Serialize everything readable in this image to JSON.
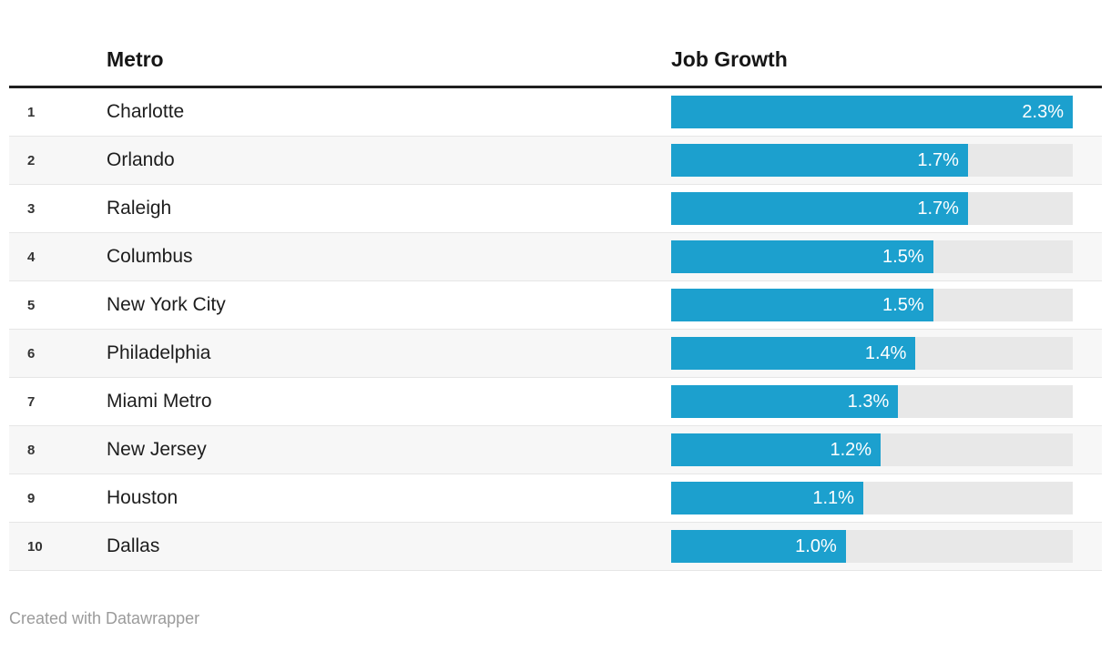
{
  "chart_data": {
    "type": "bar",
    "orientation": "horizontal",
    "column_headers": {
      "metro": "Metro",
      "value": "Job Growth"
    },
    "categories": [
      "Charlotte",
      "Orlando",
      "Raleigh",
      "Columbus",
      "New York City",
      "Philadelphia",
      "Miami Metro",
      "New Jersey",
      "Houston",
      "Dallas"
    ],
    "ranks": [
      "1",
      "2",
      "3",
      "4",
      "5",
      "6",
      "7",
      "8",
      "9",
      "10"
    ],
    "values": [
      2.3,
      1.7,
      1.7,
      1.5,
      1.5,
      1.4,
      1.3,
      1.2,
      1.1,
      1.0
    ],
    "labels": [
      "2.3%",
      "1.7%",
      "1.7%",
      "1.5%",
      "1.5%",
      "1.4%",
      "1.3%",
      "1.2%",
      "1.1%",
      "1.0%"
    ],
    "xlim": [
      0,
      2.3
    ],
    "title": "",
    "xlabel": "",
    "ylabel": "",
    "grid": false,
    "legend": false
  },
  "footer": {
    "credit": "Created with Datawrapper"
  },
  "colors": {
    "bar_fill": "#1ca0ce",
    "bar_track": "#e8e8e8",
    "alt_row_bg": "#f7f7f7",
    "header_rule": "#1f1f1f",
    "row_separator": "#e6e6e6",
    "header_text": "#161616",
    "body_text": "#1d1d1d",
    "rank_text": "#333333",
    "bar_label_text": "#ffffff",
    "footer_text": "#9b9b9b"
  }
}
